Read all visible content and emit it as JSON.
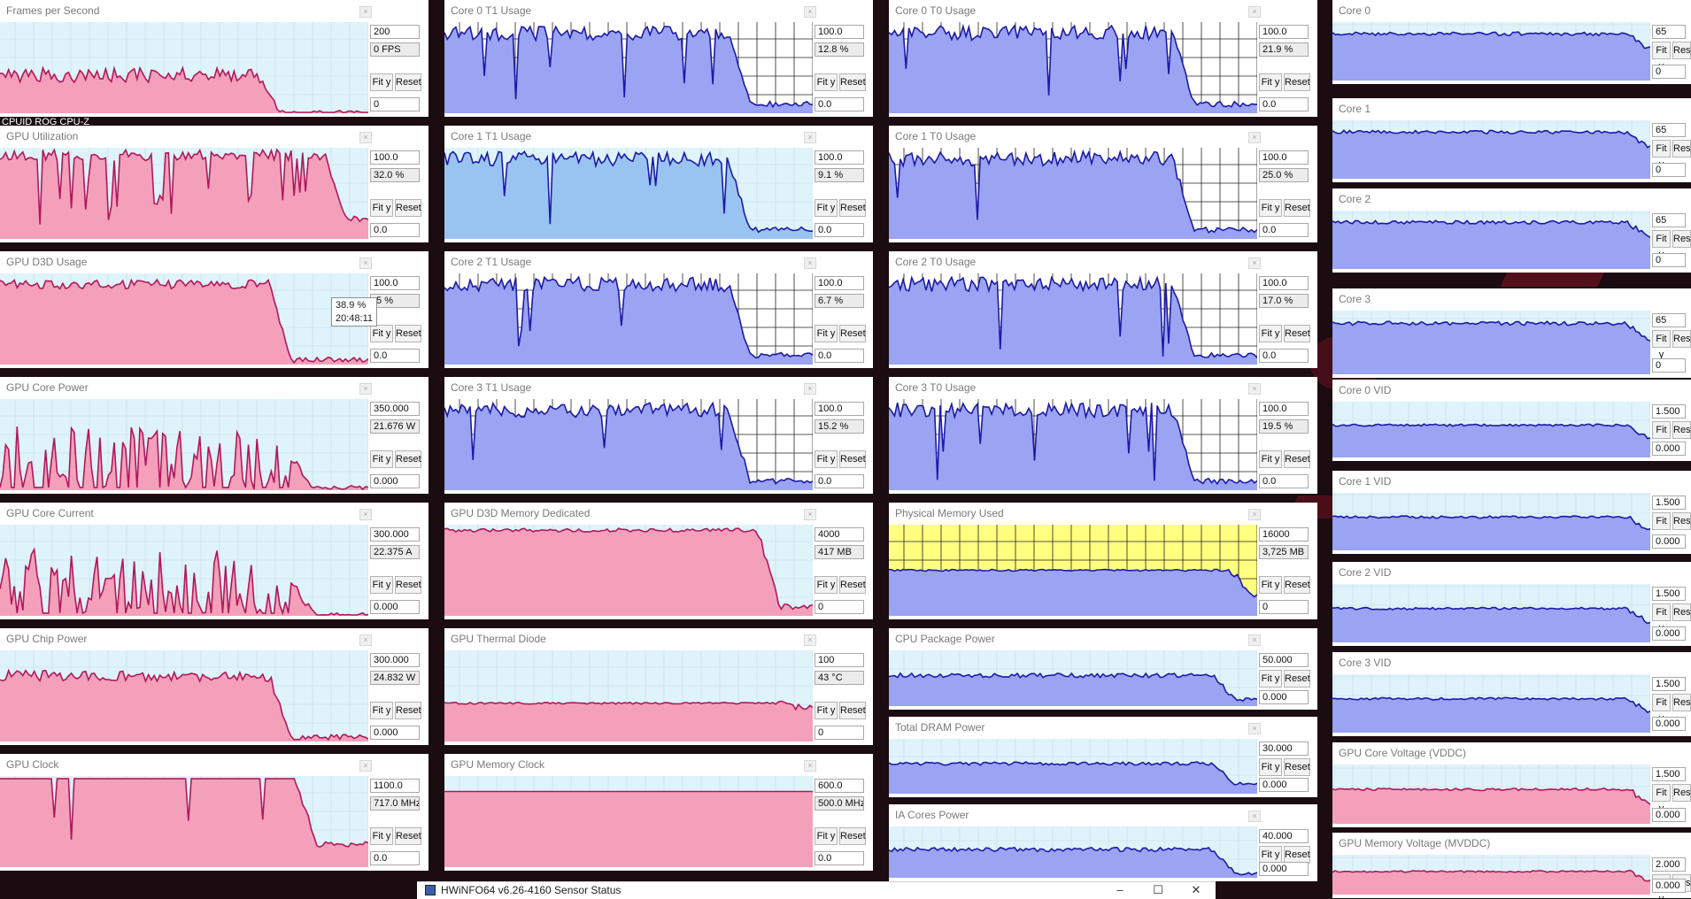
{
  "window": {
    "title": "HWiNFO64 v6.26-4160 Sensor Status",
    "minimize_glyph": "–",
    "maximize_glyph": "☐",
    "close_glyph": "✕",
    "icon": "hwinfo-app-icon"
  },
  "desktop_label": "CPUID ROG CPU-Z",
  "tooltip": {
    "value": "38.9 %",
    "time": "20:48:11"
  },
  "colors": {
    "pink": "#f4a0ba",
    "pink_line": "#b0185a",
    "blue": "#9aa4f2",
    "blue_line": "#1c1aa8",
    "light_blue": "#99c4f2",
    "yellow": "#ffff80",
    "graph_bg": "#dff3fb"
  },
  "buttons": {
    "fit": "Fit y",
    "reset": "Reset"
  },
  "panels": [
    {
      "id": "fps",
      "title": "Frames per Second",
      "max": "200",
      "current": "0 FPS",
      "min": "0"
    },
    {
      "id": "gpu-util",
      "title": "GPU Utilization",
      "max": "100.0",
      "current": "32.0 %",
      "min": "0.0"
    },
    {
      "id": "gpu-d3d",
      "title": "GPU D3D Usage",
      "max": "100.0",
      "current": ".5 %",
      "min": "0.0"
    },
    {
      "id": "gpu-core-power",
      "title": "GPU Core Power",
      "max": "350.000",
      "current": "21.676 W",
      "min": "0.000"
    },
    {
      "id": "gpu-core-current",
      "title": "GPU Core Current",
      "max": "300.000",
      "current": "22.375 A",
      "min": "0.000"
    },
    {
      "id": "gpu-chip-power",
      "title": "GPU Chip Power",
      "max": "300.000",
      "current": "24.832 W",
      "min": "0.000"
    },
    {
      "id": "gpu-clock",
      "title": "GPU Clock",
      "max": "1100.0",
      "current": "717.0 MHz",
      "min": "0.0"
    },
    {
      "id": "c0t1",
      "title": "Core 0 T1 Usage",
      "max": "100.0",
      "current": "12.8 %",
      "min": "0.0"
    },
    {
      "id": "c1t1",
      "title": "Core 1 T1 Usage",
      "max": "100.0",
      "current": "9.1 %",
      "min": "0.0"
    },
    {
      "id": "c2t1",
      "title": "Core 2 T1 Usage",
      "max": "100.0",
      "current": "6.7 %",
      "min": "0.0"
    },
    {
      "id": "c3t1",
      "title": "Core 3 T1 Usage",
      "max": "100.0",
      "current": "15.2 %",
      "min": "0.0"
    },
    {
      "id": "gpu-mem-ded",
      "title": "GPU D3D Memory Dedicated",
      "max": "4000",
      "current": "417 MB",
      "min": "0"
    },
    {
      "id": "gpu-thermal",
      "title": "GPU Thermal Diode",
      "max": "100",
      "current": "43 °C",
      "min": "0"
    },
    {
      "id": "gpu-mem-clock",
      "title": "GPU Memory Clock",
      "max": "600.0",
      "current": "500.0 MHz",
      "min": "0.0"
    },
    {
      "id": "c0t0",
      "title": "Core 0 T0 Usage",
      "max": "100.0",
      "current": "21.9 %",
      "min": "0.0"
    },
    {
      "id": "c1t0",
      "title": "Core 1 T0 Usage",
      "max": "100.0",
      "current": "25.0 %",
      "min": "0.0"
    },
    {
      "id": "c2t0",
      "title": "Core 2 T0 Usage",
      "max": "100.0",
      "current": "17.0 %",
      "min": "0.0"
    },
    {
      "id": "c3t0",
      "title": "Core 3 T0 Usage",
      "max": "100.0",
      "current": "19.5 %",
      "min": "0.0"
    },
    {
      "id": "phys-mem",
      "title": "Physical Memory Used",
      "max": "16000",
      "current": "3,725 MB",
      "min": "0"
    },
    {
      "id": "cpu-pkg-power",
      "title": "CPU Package Power",
      "max": "50.000",
      "current": "",
      "min": "0.000"
    },
    {
      "id": "dram-power",
      "title": "Total DRAM Power",
      "max": "30.000",
      "current": "",
      "min": "0.000"
    },
    {
      "id": "ia-power",
      "title": "IA Cores Power",
      "max": "40.000",
      "current": "",
      "min": "0.000"
    },
    {
      "id": "core0",
      "title": "Core 0",
      "max": "65",
      "current": "",
      "min": "0"
    },
    {
      "id": "core1",
      "title": "Core 1",
      "max": "65",
      "current": "",
      "min": "0"
    },
    {
      "id": "core2",
      "title": "Core 2",
      "max": "65",
      "current": "",
      "min": "0"
    },
    {
      "id": "core3",
      "title": "Core 3",
      "max": "65",
      "current": "",
      "min": "0"
    },
    {
      "id": "core0-vid",
      "title": "Core 0 VID",
      "max": "1.500",
      "current": "",
      "min": "0.000"
    },
    {
      "id": "core1-vid",
      "title": "Core 1 VID",
      "max": "1.500",
      "current": "",
      "min": "0.000"
    },
    {
      "id": "core2-vid",
      "title": "Core 2 VID",
      "max": "1.500",
      "current": "",
      "min": "0.000"
    },
    {
      "id": "core3-vid",
      "title": "Core 3 VID",
      "max": "1.500",
      "current": "",
      "min": "0.000"
    },
    {
      "id": "gpu-core-vddc",
      "title": "GPU Core Voltage (VDDC)",
      "max": "1.500",
      "current": "",
      "min": "0.000"
    },
    {
      "id": "gpu-mem-mvddc",
      "title": "GPU Memory Voltage (MVDDC)",
      "max": "2.000",
      "current": "",
      "min": "0.000"
    }
  ]
}
